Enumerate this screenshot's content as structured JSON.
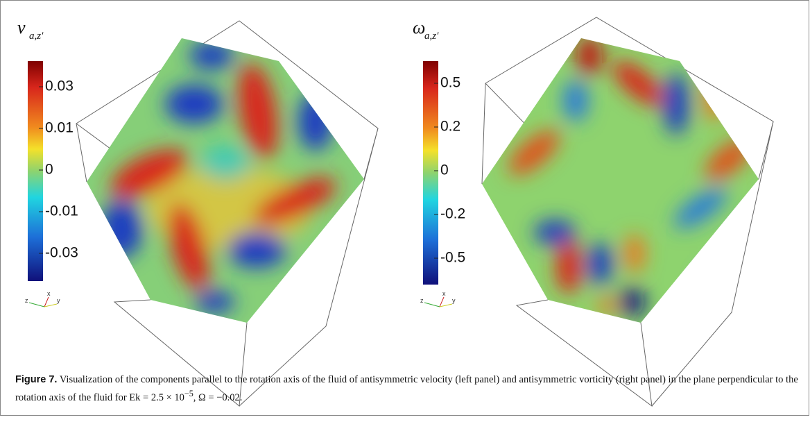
{
  "figure": {
    "panels": [
      {
        "symbol": "v",
        "subscript": "a,z′",
        "ticks": [
          "0.03",
          "0.01",
          "0",
          "-0.01",
          "-0.03"
        ],
        "axes": [
          "z",
          "x",
          "y"
        ]
      },
      {
        "symbol": "ω",
        "subscript": "a,z′",
        "ticks": [
          "0.5",
          "0.2",
          "0",
          "-0.2",
          "-0.5"
        ],
        "axes": [
          "z",
          "x",
          "y"
        ]
      }
    ],
    "caption": {
      "label": "Figure 7.",
      "text": "Visualization of the components parallel to the rotation axis of the fluid of antisymmetric velocity (left panel) and antisymmetric vorticity (right panel) in the plane perpendicular to the rotation axis of the fluid for Ek = 2.5 × 10",
      "exponent": "−5",
      "tail": ", Ω = −0.02."
    }
  }
}
